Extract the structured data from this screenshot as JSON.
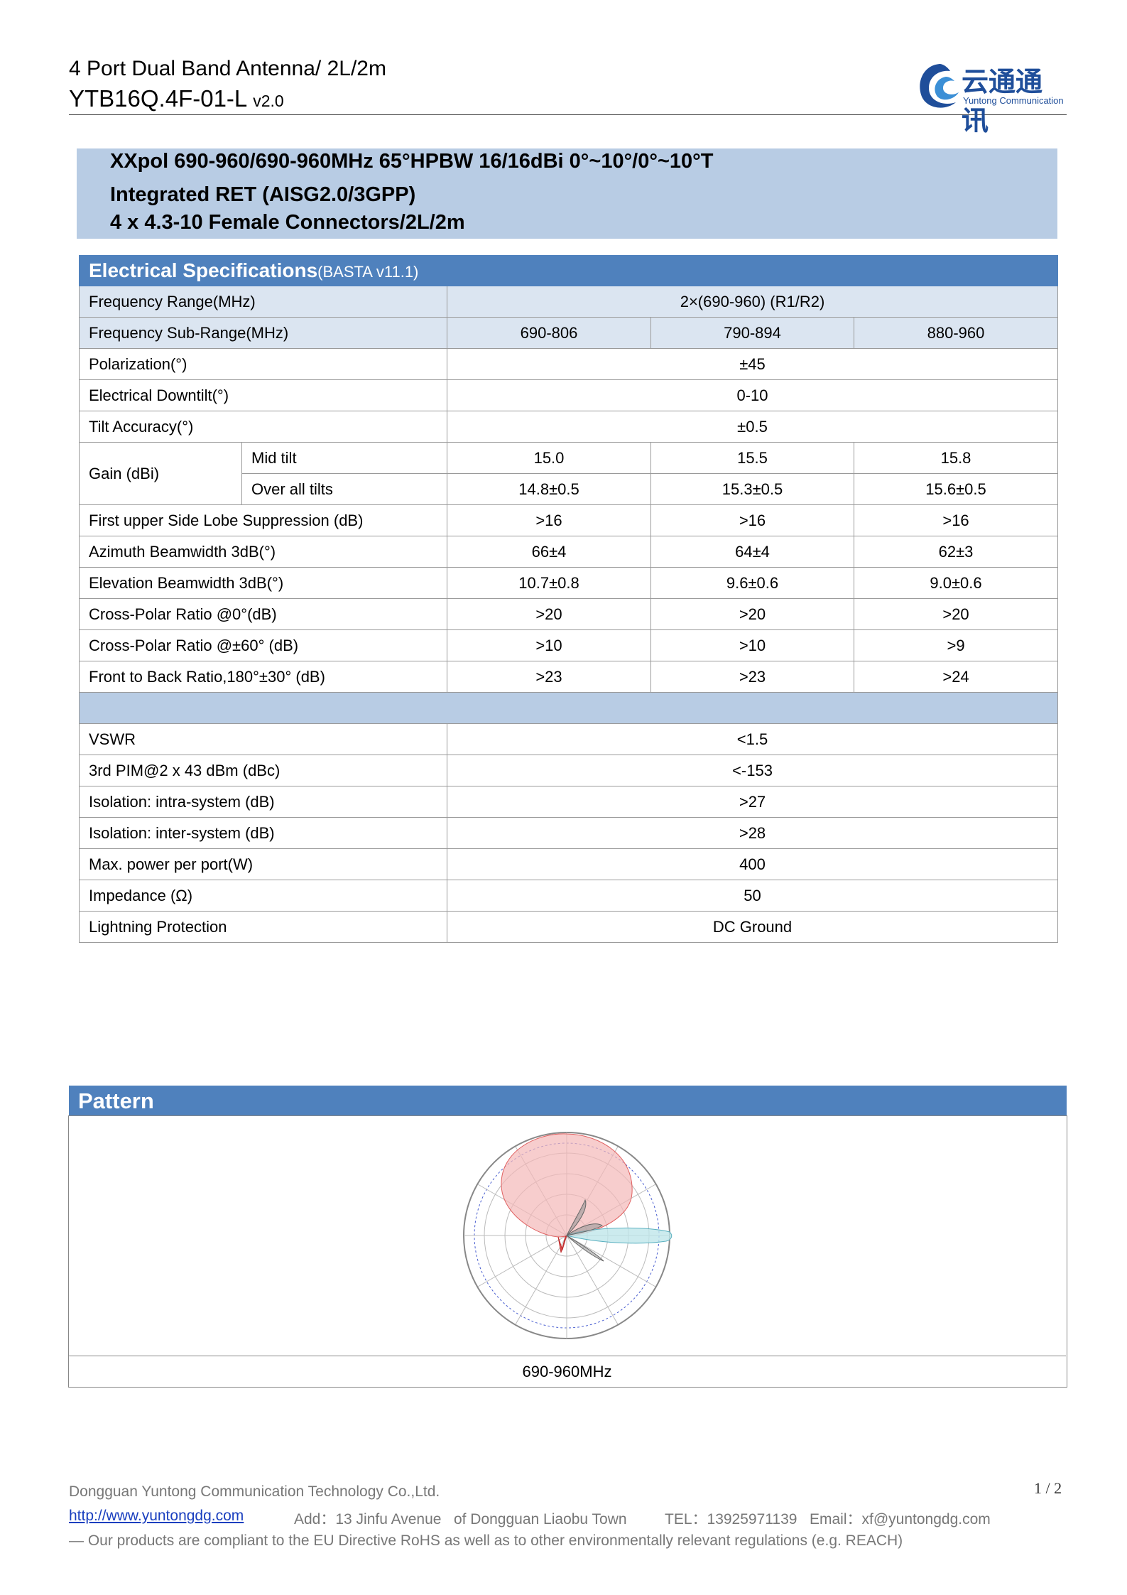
{
  "header": {
    "title": "4 Port Dual Band Antenna/ 2L/2m",
    "model": "YTB16Q.4F-01-L",
    "version": "v2.0"
  },
  "logo": {
    "name": "云通通讯",
    "subtitle": "Yuntong Communication"
  },
  "summary": [
    "XXpol 690-960/690-960MHz 65°HPBW 16/16dBi 0°~10°/0°~10°T",
    "Integrated RET (AISG2.0/3GPP)",
    "4 x 4.3-10 Female Connectors/2L/2m"
  ],
  "specs": {
    "title": "Electrical Specifications",
    "standard": "(BASTA v11.1)",
    "rows": [
      {
        "label": "Frequency Range(MHz)",
        "values": [
          "2×(690-960) (R1/R2)"
        ],
        "shade": true
      },
      {
        "label": "Frequency Sub-Range(MHz)",
        "values": [
          "690-806",
          "790-894",
          "880-960"
        ],
        "shade": true
      },
      {
        "label": "Polarization(°)",
        "values": [
          "±45"
        ]
      },
      {
        "label": "Electrical Downtilt(°)",
        "values": [
          "0-10"
        ]
      },
      {
        "label": "Tilt Accuracy(°)",
        "values": [
          "±0.5"
        ]
      },
      {
        "label": "Gain (dBi)",
        "sub": [
          {
            "label": "Mid tilt",
            "values": [
              "15.0",
              "15.5",
              "15.8"
            ]
          },
          {
            "label": "Over all tilts",
            "values": [
              "14.8±0.5",
              "15.3±0.5",
              "15.6±0.5"
            ]
          }
        ]
      },
      {
        "label": "First upper Side Lobe Suppression (dB)",
        "values": [
          ">16",
          ">16",
          ">16"
        ]
      },
      {
        "label": "Azimuth Beamwidth 3dB(°)",
        "values": [
          "66±4",
          "64±4",
          "62±3"
        ]
      },
      {
        "label": "Elevation Beamwidth 3dB(°)",
        "values": [
          "10.7±0.8",
          "9.6±0.6",
          "9.0±0.6"
        ]
      },
      {
        "label": "Cross-Polar Ratio @0°(dB)",
        "values": [
          ">20",
          ">20",
          ">20"
        ]
      },
      {
        "label": "Cross-Polar Ratio @±60° (dB)",
        "values": [
          ">10",
          ">10",
          ">9"
        ]
      },
      {
        "label": "Front to Back Ratio,180°±30° (dB)",
        "values": [
          ">23",
          ">23",
          ">24"
        ]
      },
      {
        "blank": true
      },
      {
        "label": "VSWR",
        "values": [
          "<1.5"
        ]
      },
      {
        "label": "3rd PIM@2 x 43 dBm (dBc)",
        "values": [
          "<-153"
        ]
      },
      {
        "label": "Isolation: intra-system (dB)",
        "values": [
          ">27"
        ]
      },
      {
        "label": "Isolation: inter-system (dB)",
        "values": [
          ">28"
        ]
      },
      {
        "label": "Max. power per port(W)",
        "values": [
          "400"
        ]
      },
      {
        "label": "Impedance (Ω)",
        "values": [
          "50"
        ]
      },
      {
        "label": "Lightning Protection",
        "values": [
          "DC Ground"
        ]
      }
    ]
  },
  "pattern": {
    "title": "Pattern",
    "caption": "690-960MHz"
  },
  "footer": {
    "company": "Dongguan Yuntong Communication Technology Co.,Ltd.",
    "url": "http://www.yuntongdg.com",
    "address": "Add：13 Jinfu Avenue   of Dongguan Liaobu Town",
    "tel": "TEL：13925971139",
    "email": "Email：xf@yuntongdg.com",
    "compliance": "— Our products are compliant to the EU Directive RoHS as well as to other environmentally relevant regulations (e.g. REACH)",
    "page": "1 / 2"
  }
}
